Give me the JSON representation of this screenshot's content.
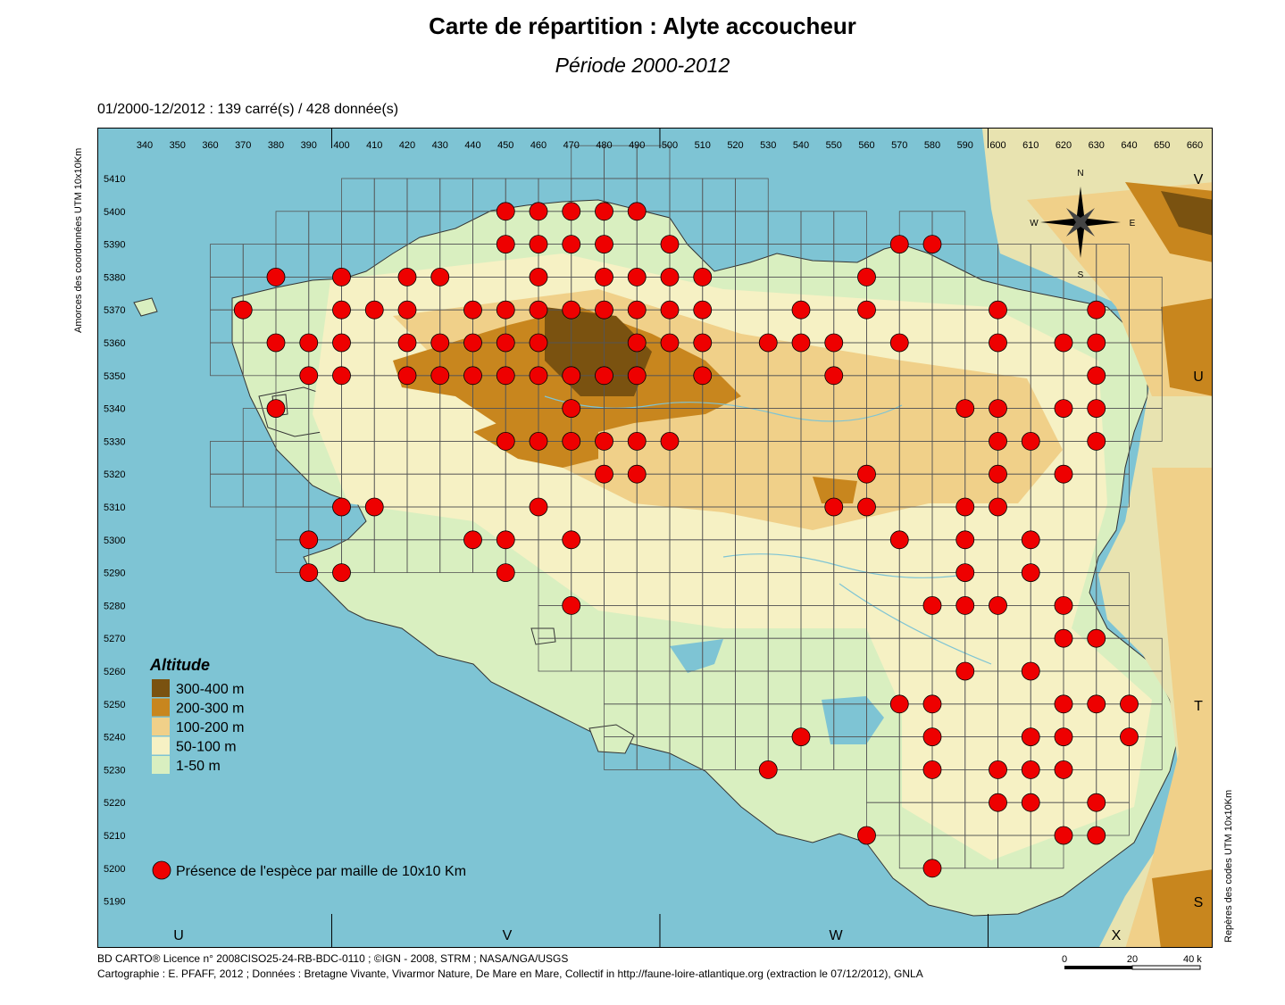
{
  "title": "Carte de répartition : Alyte accoucheur",
  "subtitle": "Période 2000-2012",
  "stats": "01/2000-12/2012  :  139 carré(s) / 428 donnée(s)",
  "y_axis_title": "Amorces des coordonnées UTM 10x10Km",
  "right_axis_title": "Repères des codes UTM 10x10Km",
  "x_ticks": [
    "340",
    "350",
    "360",
    "370",
    "380",
    "390",
    "400",
    "410",
    "420",
    "430",
    "440",
    "450",
    "460",
    "470",
    "480",
    "490",
    "500",
    "510",
    "520",
    "530",
    "540",
    "550",
    "560",
    "570",
    "580",
    "590",
    "600",
    "610",
    "620",
    "630",
    "640",
    "650",
    "660"
  ],
  "y_ticks": [
    "5410",
    "5400",
    "5390",
    "5380",
    "5370",
    "5360",
    "5350",
    "5340",
    "5330",
    "5320",
    "5310",
    "5300",
    "5290",
    "5280",
    "5270",
    "5260",
    "5250",
    "5240",
    "5230",
    "5220",
    "5210",
    "5200",
    "5190"
  ],
  "zone_letters_bottom": [
    "U",
    "V",
    "W",
    "X"
  ],
  "zone_letters_right": [
    "V",
    "U",
    "T",
    "S"
  ],
  "compass": {
    "n": "N",
    "s": "S",
    "e": "E",
    "w": "W"
  },
  "legend": {
    "altitude_title": "Altitude",
    "classes": [
      {
        "label": "300-400 m",
        "color": "#7a5210"
      },
      {
        "label": "200-300 m",
        "color": "#c8861e"
      },
      {
        "label": "100-200 m",
        "color": "#f0d089"
      },
      {
        "label": "50-100 m",
        "color": "#f6f1c4"
      },
      {
        "label": "1-50 m",
        "color": "#d9efc0"
      }
    ],
    "presence_label": "Présence de l'espèce par maille de 10x10 Km"
  },
  "colors": {
    "sea": "#7ec4d4",
    "presence": "#ee0000",
    "grid": "#555555"
  },
  "credits": [
    "BD CARTO® Licence n° 2008CISO25-24-RB-BDC-0110 ; ©IGN - 2008, STRM ; NASA/NGA/USGS",
    "Cartographie : E. PFAFF, 2012 ; Données : Bretagne Vivante, Vivarmor Nature, De Mare en Mare, Collectif in http://faune-loire-atlantique.org (extraction le 07/12/2012), GNLA"
  ],
  "scalebar": {
    "labels": [
      "0",
      "20",
      "40 km"
    ]
  },
  "presence": [
    [
      450,
      5400
    ],
    [
      460,
      5400
    ],
    [
      470,
      5400
    ],
    [
      480,
      5400
    ],
    [
      490,
      5400
    ],
    [
      450,
      5390
    ],
    [
      460,
      5390
    ],
    [
      470,
      5390
    ],
    [
      480,
      5390
    ],
    [
      500,
      5390
    ],
    [
      570,
      5390
    ],
    [
      580,
      5390
    ],
    [
      380,
      5380
    ],
    [
      400,
      5380
    ],
    [
      420,
      5380
    ],
    [
      430,
      5380
    ],
    [
      460,
      5380
    ],
    [
      480,
      5380
    ],
    [
      490,
      5380
    ],
    [
      500,
      5380
    ],
    [
      510,
      5380
    ],
    [
      560,
      5380
    ],
    [
      370,
      5370
    ],
    [
      400,
      5370
    ],
    [
      410,
      5370
    ],
    [
      420,
      5370
    ],
    [
      440,
      5370
    ],
    [
      450,
      5370
    ],
    [
      460,
      5370
    ],
    [
      470,
      5370
    ],
    [
      480,
      5370
    ],
    [
      490,
      5370
    ],
    [
      500,
      5370
    ],
    [
      510,
      5370
    ],
    [
      540,
      5370
    ],
    [
      560,
      5370
    ],
    [
      600,
      5370
    ],
    [
      630,
      5370
    ],
    [
      380,
      5360
    ],
    [
      390,
      5360
    ],
    [
      400,
      5360
    ],
    [
      420,
      5360
    ],
    [
      430,
      5360
    ],
    [
      440,
      5360
    ],
    [
      450,
      5360
    ],
    [
      460,
      5360
    ],
    [
      490,
      5360
    ],
    [
      500,
      5360
    ],
    [
      510,
      5360
    ],
    [
      530,
      5360
    ],
    [
      540,
      5360
    ],
    [
      550,
      5360
    ],
    [
      570,
      5360
    ],
    [
      600,
      5360
    ],
    [
      620,
      5360
    ],
    [
      630,
      5360
    ],
    [
      390,
      5350
    ],
    [
      400,
      5350
    ],
    [
      420,
      5350
    ],
    [
      430,
      5350
    ],
    [
      440,
      5350
    ],
    [
      450,
      5350
    ],
    [
      460,
      5350
    ],
    [
      470,
      5350
    ],
    [
      480,
      5350
    ],
    [
      490,
      5350
    ],
    [
      510,
      5350
    ],
    [
      550,
      5350
    ],
    [
      630,
      5350
    ],
    [
      380,
      5340
    ],
    [
      470,
      5340
    ],
    [
      590,
      5340
    ],
    [
      600,
      5340
    ],
    [
      620,
      5340
    ],
    [
      630,
      5340
    ],
    [
      450,
      5330
    ],
    [
      460,
      5330
    ],
    [
      470,
      5330
    ],
    [
      480,
      5330
    ],
    [
      490,
      5330
    ],
    [
      500,
      5330
    ],
    [
      600,
      5330
    ],
    [
      610,
      5330
    ],
    [
      630,
      5330
    ],
    [
      480,
      5320
    ],
    [
      490,
      5320
    ],
    [
      560,
      5320
    ],
    [
      600,
      5320
    ],
    [
      620,
      5320
    ],
    [
      400,
      5310
    ],
    [
      410,
      5310
    ],
    [
      460,
      5310
    ],
    [
      550,
      5310
    ],
    [
      560,
      5310
    ],
    [
      590,
      5310
    ],
    [
      600,
      5310
    ],
    [
      390,
      5300
    ],
    [
      440,
      5300
    ],
    [
      450,
      5300
    ],
    [
      470,
      5300
    ],
    [
      570,
      5300
    ],
    [
      590,
      5300
    ],
    [
      610,
      5300
    ],
    [
      390,
      5290
    ],
    [
      400,
      5290
    ],
    [
      450,
      5290
    ],
    [
      590,
      5290
    ],
    [
      610,
      5290
    ],
    [
      470,
      5280
    ],
    [
      580,
      5280
    ],
    [
      590,
      5280
    ],
    [
      600,
      5280
    ],
    [
      620,
      5280
    ],
    [
      620,
      5270
    ],
    [
      630,
      5270
    ],
    [
      590,
      5260
    ],
    [
      610,
      5260
    ],
    [
      570,
      5250
    ],
    [
      580,
      5250
    ],
    [
      620,
      5250
    ],
    [
      630,
      5250
    ],
    [
      640,
      5250
    ],
    [
      540,
      5240
    ],
    [
      580,
      5240
    ],
    [
      610,
      5240
    ],
    [
      620,
      5240
    ],
    [
      640,
      5240
    ],
    [
      530,
      5230
    ],
    [
      580,
      5230
    ],
    [
      600,
      5230
    ],
    [
      610,
      5230
    ],
    [
      620,
      5230
    ],
    [
      600,
      5220
    ],
    [
      610,
      5220
    ],
    [
      630,
      5220
    ],
    [
      560,
      5210
    ],
    [
      620,
      5210
    ],
    [
      630,
      5210
    ],
    [
      580,
      5200
    ]
  ]
}
